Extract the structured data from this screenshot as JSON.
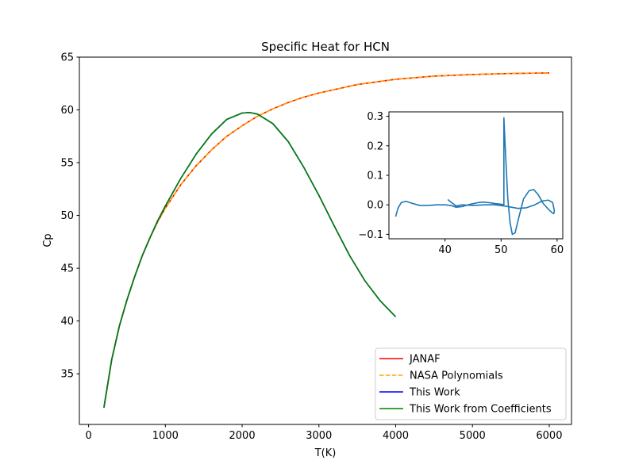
{
  "chart_data": [
    {
      "type": "line",
      "title": "Specific Heat for HCN",
      "xlabel": "T(K)",
      "ylabel": "Cp",
      "xlim": [
        -120,
        6290
      ],
      "ylim": [
        30.2,
        65
      ],
      "xticks": [
        0,
        1000,
        2000,
        3000,
        4000,
        5000,
        6000
      ],
      "xtick_labels": [
        "0",
        "1000",
        "2000",
        "3000",
        "4000",
        "5000",
        "6000"
      ],
      "yticks": [
        35,
        40,
        45,
        50,
        55,
        60,
        65
      ],
      "ytick_labels": [
        "35",
        "40",
        "45",
        "50",
        "55",
        "60",
        "65"
      ],
      "grid": false,
      "legend_position": "lower-right",
      "series": [
        {
          "name": "JANAF",
          "color": "#ff0000",
          "style": "solid",
          "x": [
            200,
            300,
            400,
            500,
            600,
            700,
            800,
            900,
            1000,
            1200,
            1400,
            1600,
            1800,
            2000,
            2200,
            2400,
            2600,
            2800,
            3000,
            3500,
            4000,
            4500,
            5000,
            5500,
            6000
          ],
          "y": [
            31.8,
            36.3,
            39.5,
            42.0,
            44.2,
            46.2,
            47.9,
            49.4,
            50.7,
            52.9,
            54.7,
            56.2,
            57.5,
            58.5,
            59.4,
            60.1,
            60.7,
            61.2,
            61.6,
            62.4,
            62.9,
            63.2,
            63.35,
            63.45,
            63.5
          ]
        },
        {
          "name": "NASA Polynomials",
          "color": "#ffa500",
          "style": "dashed",
          "x": [
            200,
            300,
            400,
            500,
            600,
            700,
            800,
            900,
            1000,
            1200,
            1400,
            1600,
            1800,
            2000,
            2200,
            2400,
            2600,
            2800,
            3000,
            3500,
            4000,
            4500,
            5000,
            5500,
            6000
          ],
          "y": [
            31.8,
            36.3,
            39.5,
            42.0,
            44.2,
            46.2,
            47.9,
            49.4,
            50.7,
            52.9,
            54.7,
            56.2,
            57.5,
            58.5,
            59.4,
            60.1,
            60.7,
            61.2,
            61.6,
            62.4,
            62.9,
            63.2,
            63.35,
            63.45,
            63.5
          ]
        },
        {
          "name": "This Work",
          "color": "#0000ff",
          "style": "solid",
          "x": [
            200,
            300,
            400,
            500,
            600,
            700,
            800,
            900,
            1000,
            1200,
            1400,
            1600,
            1800,
            2000,
            2100,
            2200,
            2400,
            2600,
            2800,
            3000,
            3200,
            3400,
            3600,
            3800,
            4000
          ],
          "y": [
            31.8,
            36.3,
            39.5,
            42.0,
            44.2,
            46.2,
            47.9,
            49.5,
            50.9,
            53.5,
            55.8,
            57.7,
            59.1,
            59.7,
            59.75,
            59.6,
            58.7,
            57.0,
            54.6,
            51.9,
            49.0,
            46.2,
            43.8,
            41.9,
            40.4
          ]
        },
        {
          "name": "This Work from Coefficients",
          "color": "#008000",
          "style": "solid",
          "x": [
            200,
            300,
            400,
            500,
            600,
            700,
            800,
            900,
            1000,
            1200,
            1400,
            1600,
            1800,
            2000,
            2100,
            2200,
            2400,
            2600,
            2800,
            3000,
            3200,
            3400,
            3600,
            3800,
            4000
          ],
          "y": [
            31.8,
            36.3,
            39.5,
            42.0,
            44.2,
            46.2,
            47.9,
            49.5,
            50.9,
            53.5,
            55.8,
            57.7,
            59.1,
            59.7,
            59.75,
            59.6,
            58.7,
            57.0,
            54.6,
            51.9,
            49.0,
            46.2,
            43.8,
            41.9,
            40.4
          ]
        }
      ]
    },
    {
      "type": "line",
      "title": "",
      "xlabel": "",
      "ylabel": "",
      "xlim": [
        30,
        61
      ],
      "ylim": [
        -0.115,
        0.315
      ],
      "xticks": [
        40,
        50,
        60
      ],
      "xtick_labels": [
        "40",
        "50",
        "60"
      ],
      "yticks": [
        -0.1,
        0.0,
        0.1,
        0.2,
        0.3
      ],
      "ytick_labels": [
        "−0.1",
        "0.0",
        "0.1",
        "0.2",
        "0.3"
      ],
      "grid": false,
      "series": [
        {
          "color": "#1f77b4",
          "style": "solid",
          "x": [
            31.2,
            31.6,
            32.2,
            33.0,
            34.0,
            35.5,
            37.0,
            38.5,
            40.0,
            41.0,
            42.0,
            43.0,
            44.5,
            46.0,
            47.0,
            48.0,
            49.0,
            50.0,
            50.5,
            50.5,
            50.8,
            51.2,
            51.6,
            52.0,
            52.5,
            53.0,
            54.0,
            55.0,
            55.8,
            56.6,
            57.5,
            58.3,
            59.0,
            59.4,
            59.5,
            59.2,
            58.4,
            57.3,
            56.0,
            54.5,
            53.0,
            51.0,
            49.0,
            47.0,
            45.0,
            43.0,
            42.0,
            41.0,
            40.5
          ],
          "y": [
            -0.04,
            -0.012,
            0.008,
            0.012,
            0.006,
            -0.002,
            -0.002,
            0.0,
            0.0,
            -0.002,
            -0.008,
            -0.006,
            0.002,
            0.008,
            0.009,
            0.007,
            0.004,
            0.002,
            0.0,
            0.295,
            0.17,
            0.02,
            -0.06,
            -0.1,
            -0.095,
            -0.055,
            0.02,
            0.048,
            0.052,
            0.035,
            0.005,
            -0.012,
            -0.025,
            -0.03,
            -0.02,
            0.008,
            0.016,
            0.013,
            0.0,
            -0.01,
            -0.012,
            -0.005,
            0.0,
            0.0,
            -0.002,
            0.0,
            -0.004,
            0.01,
            0.018
          ]
        }
      ]
    }
  ]
}
